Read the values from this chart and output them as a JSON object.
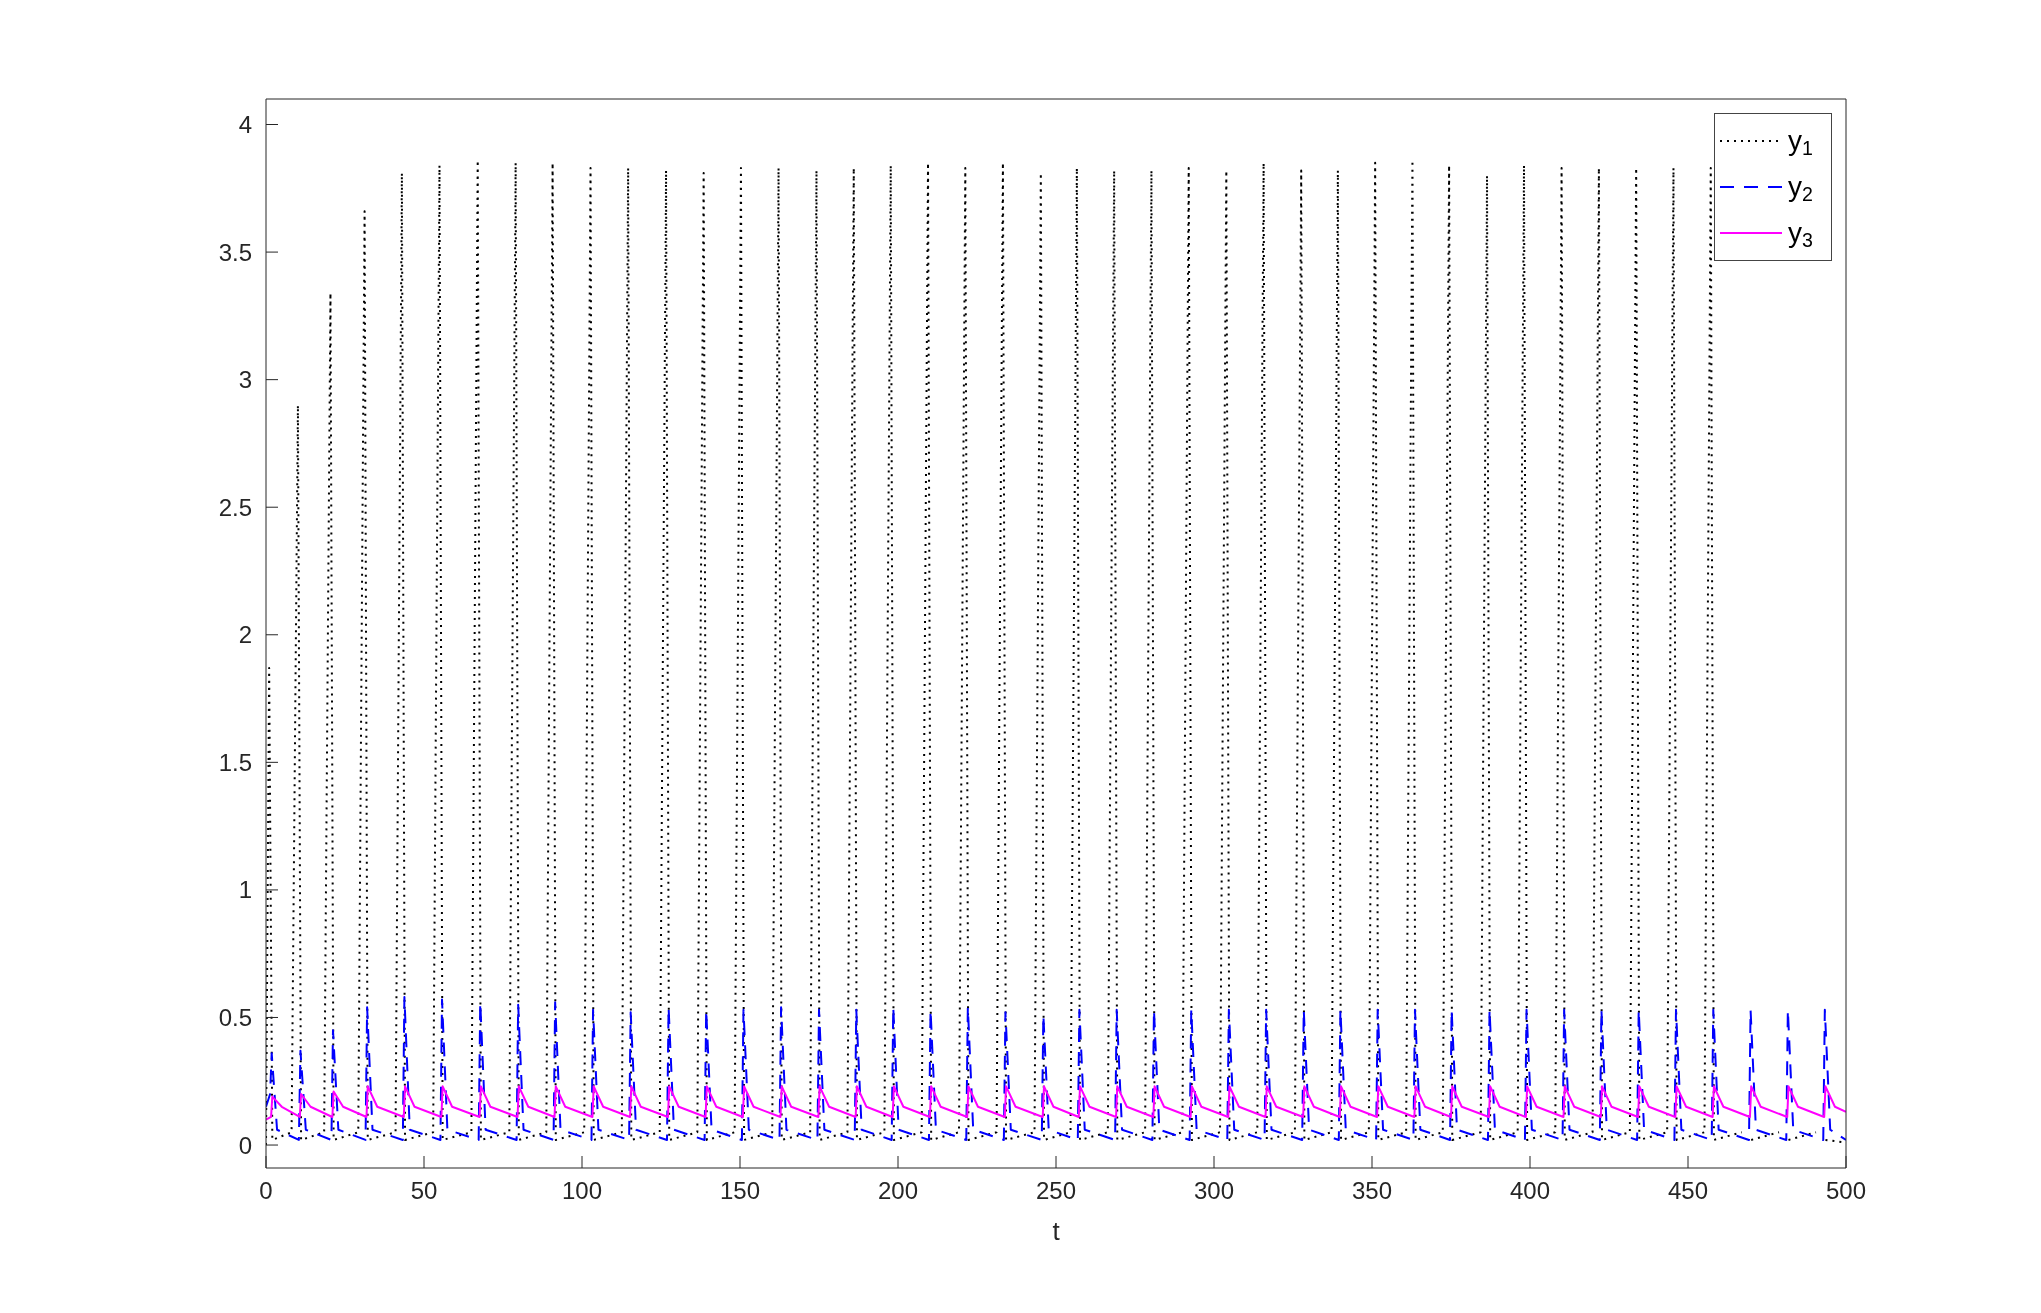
{
  "chart_data": {
    "type": "line",
    "xlabel": "t",
    "xlim": [
      0,
      500
    ],
    "xticks": [
      0,
      50,
      100,
      150,
      200,
      250,
      300,
      350,
      400,
      450,
      500
    ],
    "ylim": [
      -0.09,
      4.1
    ],
    "yticks": [
      0,
      0.5,
      1,
      1.5,
      2,
      2.5,
      3,
      3.5,
      4
    ],
    "legend": "top right",
    "series": [
      {
        "name": "y$_{1}$",
        "color": "#000000",
        "line_style": "dotted",
        "x": [
          0,
          1,
          2,
          8.1,
          10.1,
          11.1,
          18.4,
          20.4,
          21.4,
          29.2,
          31.2,
          32.2,
          41,
          43,
          44,
          52.9,
          54.9,
          55.9,
          65,
          67,
          68,
          77,
          79,
          80,
          88.7,
          90.7,
          91.7,
          100.7,
          102.7,
          103.7,
          112.6,
          114.6,
          115.6,
          124.6,
          126.6,
          127.6,
          136.5,
          138.5,
          139.5,
          148.3,
          150.3,
          151.3,
          160.2,
          162.2,
          163.2,
          172.2,
          174.2,
          175.2,
          184,
          186,
          187,
          195.7,
          197.7,
          198.7,
          207.5,
          209.5,
          210.5,
          219.3,
          221.3,
          222.3,
          231.2,
          233.2,
          234.2,
          243.2,
          245.2,
          246.2,
          254.6,
          256.6,
          257.6,
          266.4,
          268.4,
          269.4,
          278.2,
          280.2,
          281.2,
          290,
          292,
          293,
          301.9,
          303.9,
          304.9,
          313.7,
          315.7,
          316.7,
          325.6,
          327.6,
          328.6,
          337.2,
          339.2,
          340.2,
          349,
          351,
          352,
          360.8,
          362.8,
          363.8,
          372.4,
          374.4,
          375.4,
          384.4,
          386.4,
          387.4,
          396.1,
          398.1,
          399.1,
          408,
          410,
          411,
          419.8,
          421.8,
          422.8,
          431.6,
          433.6,
          434.6,
          443.4,
          445.4,
          446.4,
          455.2,
          457.2,
          458.2,
          467,
          469,
          470,
          478.8,
          480.8,
          481.8,
          490.5,
          492.5,
          493.5,
          500
        ],
        "values": [
          0,
          1.87,
          0.02,
          0.05,
          2.9,
          0.02,
          0.05,
          3.34,
          0.02,
          0.05,
          3.66,
          0.02,
          0.05,
          3.81,
          0.02,
          0.05,
          3.84,
          0.02,
          0.05,
          3.86,
          0.02,
          0.05,
          3.85,
          0.02,
          0.05,
          3.85,
          0.02,
          0.05,
          3.83,
          0.02,
          0.05,
          3.83,
          0.02,
          0.05,
          3.82,
          0.02,
          0.05,
          3.81,
          0.02,
          0.05,
          3.83,
          0.02,
          0.05,
          3.83,
          0.02,
          0.05,
          3.82,
          0.02,
          0.05,
          3.83,
          0.02,
          0.05,
          3.84,
          0.02,
          0.05,
          3.85,
          0.02,
          0.05,
          3.83,
          0.02,
          0.05,
          3.85,
          0.02,
          0.05,
          3.81,
          0.02,
          0.05,
          3.83,
          0.02,
          0.05,
          3.82,
          0.02,
          0.05,
          3.82,
          0.02,
          0.05,
          3.83,
          0.02,
          0.05,
          3.82,
          0.02,
          0.05,
          3.85,
          0.02,
          0.05,
          3.82,
          0.02,
          0.05,
          3.82,
          0.02,
          0.05,
          3.85,
          0.02,
          0.05,
          3.86,
          0.02,
          0.05,
          3.84,
          0.02,
          0.05,
          3.8,
          0.02,
          0.05,
          3.84,
          0.02,
          0.05,
          3.83,
          0.02,
          0.05,
          3.83,
          0.02,
          0.05,
          3.83,
          0.02,
          0.05,
          3.83,
          0.02,
          0.05,
          3.83,
          0.02,
          0.05,
          null,
          0.02,
          0.05,
          null,
          0.02,
          0.05,
          null,
          0.02,
          0.01
        ]
      },
      {
        "name": "y$_{2}$",
        "color": "#0000ff",
        "line_style": "dashed",
        "x": [
          0,
          1.3,
          1.8,
          3.5,
          10.4,
          10.9,
          12.6,
          20.7,
          21.2,
          22.9,
          31.5,
          32,
          33.7,
          43.3,
          43.8,
          45.5,
          55.2,
          55.7,
          57.4,
          67.3,
          67.8,
          69.5,
          79.3,
          79.8,
          81.5,
          91,
          91.5,
          93.2,
          103,
          103.5,
          105.2,
          114.9,
          115.4,
          117.1,
          126.9,
          127.4,
          129.1,
          138.8,
          139.3,
          141,
          150.6,
          151.1,
          152.8,
          162.5,
          163,
          164.7,
          174.5,
          175,
          176.7,
          186.3,
          186.8,
          188.5,
          198,
          198.5,
          200.2,
          209.8,
          210.3,
          212,
          221.6,
          222.1,
          223.8,
          233.5,
          234,
          235.7,
          245.5,
          246,
          247.7,
          256.9,
          257.4,
          259.1,
          268.7,
          269.2,
          270.9,
          280.5,
          281,
          282.7,
          292.3,
          292.8,
          294.5,
          304.2,
          304.7,
          306.4,
          316,
          316.5,
          318.2,
          327.9,
          328.4,
          330.1,
          339.5,
          340,
          341.7,
          351.3,
          351.8,
          353.5,
          363.1,
          363.6,
          365.3,
          374.7,
          375.2,
          376.9,
          386.7,
          387.2,
          388.9,
          398.4,
          398.9,
          400.6,
          410.3,
          410.8,
          412.5,
          422.1,
          422.6,
          424.3,
          433.9,
          434.4,
          436.1,
          445.7,
          446.2,
          447.9,
          457.5,
          458,
          459.7,
          469.3,
          469.8,
          471.5,
          481.1,
          481.6,
          483.3,
          492.8,
          493.3,
          495,
          500
        ],
        "values": [
          0.15,
          0.2,
          0.36,
          0.06,
          0.02,
          0.37,
          0.06,
          0.02,
          0.45,
          0.06,
          0.02,
          0.54,
          0.06,
          0.02,
          0.58,
          0.06,
          0.02,
          0.57,
          0.06,
          0.02,
          0.56,
          0.06,
          0.02,
          0.55,
          0.06,
          0.02,
          0.56,
          0.06,
          0.02,
          0.53,
          0.06,
          0.02,
          0.52,
          0.06,
          0.02,
          0.54,
          0.06,
          0.02,
          0.53,
          0.06,
          0.02,
          0.53,
          0.06,
          0.02,
          0.54,
          0.06,
          0.02,
          0.53,
          0.06,
          0.02,
          0.53,
          0.06,
          0.02,
          0.54,
          0.06,
          0.02,
          0.53,
          0.06,
          0.02,
          0.54,
          0.06,
          0.02,
          0.52,
          0.06,
          0.02,
          0.51,
          0.06,
          0.02,
          0.53,
          0.06,
          0.02,
          0.53,
          0.06,
          0.02,
          0.53,
          0.06,
          0.02,
          0.53,
          0.06,
          0.02,
          0.53,
          0.06,
          0.02,
          0.53,
          0.06,
          0.02,
          0.53,
          0.06,
          0.02,
          0.53,
          0.06,
          0.02,
          0.53,
          0.06,
          0.02,
          0.53,
          0.06,
          0.02,
          0.53,
          0.06,
          0.02,
          0.53,
          0.06,
          0.02,
          0.53,
          0.06,
          0.02,
          0.53,
          0.06,
          0.02,
          0.53,
          0.06,
          0.02,
          0.53,
          0.06,
          0.02,
          0.53,
          0.06,
          0.02,
          0.53,
          0.06,
          0.02,
          0.53,
          0.06,
          0.02,
          0.53,
          0.06,
          0.02,
          0.53,
          0.06,
          0.02
        ]
      },
      {
        "name": "y$_{3}$",
        "color": "#ff00ff",
        "line_style": "solid",
        "x": [
          0,
          1.6,
          2,
          5,
          10.7,
          11.1,
          14.1,
          21,
          21.4,
          24.4,
          31.8,
          32.2,
          35.2,
          43.6,
          44,
          47,
          55.5,
          55.9,
          58.9,
          67.6,
          68,
          71,
          79.6,
          80,
          83,
          91.3,
          91.7,
          94.7,
          103.3,
          103.7,
          106.7,
          115.2,
          115.6,
          118.6,
          127.2,
          127.6,
          130.6,
          139.1,
          139.5,
          142.5,
          150.9,
          151.3,
          154.3,
          162.8,
          163.2,
          166.2,
          174.8,
          175.2,
          178.2,
          186.6,
          187,
          190,
          198.3,
          198.7,
          201.7,
          210.1,
          210.5,
          213.5,
          221.9,
          222.3,
          225.3,
          233.8,
          234.2,
          237.2,
          245.8,
          246.2,
          249.2,
          257.2,
          257.6,
          260.6,
          269,
          269.4,
          272.4,
          280.8,
          281.2,
          284.2,
          292.6,
          293,
          296,
          304.5,
          304.9,
          307.9,
          316.3,
          316.7,
          319.7,
          328.2,
          328.6,
          331.6,
          339.8,
          340.2,
          343.2,
          351.6,
          352,
          355,
          363.4,
          363.8,
          366.8,
          375,
          375.4,
          378.4,
          387,
          387.4,
          390.4,
          398.7,
          399.1,
          402.1,
          410.6,
          411,
          414,
          422.4,
          422.8,
          425.8,
          434.2,
          434.6,
          437.6,
          446,
          446.4,
          449.4,
          457.8,
          458.2,
          461.2,
          469.6,
          470,
          473,
          481.4,
          481.8,
          484.8,
          493.1,
          493.5,
          496.5,
          500
        ],
        "values": [
          0.1,
          0.11,
          0.19,
          0.15,
          0.11,
          0.2,
          0.15,
          0.11,
          0.21,
          0.15,
          0.11,
          0.23,
          0.15,
          0.11,
          0.23,
          0.15,
          0.11,
          0.23,
          0.15,
          0.11,
          0.23,
          0.15,
          0.11,
          0.23,
          0.15,
          0.11,
          0.23,
          0.15,
          0.11,
          0.23,
          0.15,
          0.11,
          0.23,
          0.15,
          0.11,
          0.23,
          0.15,
          0.11,
          0.23,
          0.15,
          0.11,
          0.23,
          0.15,
          0.11,
          0.23,
          0.15,
          0.11,
          0.23,
          0.15,
          0.11,
          0.23,
          0.15,
          0.11,
          0.23,
          0.15,
          0.11,
          0.23,
          0.15,
          0.11,
          0.23,
          0.15,
          0.11,
          0.23,
          0.15,
          0.11,
          0.23,
          0.15,
          0.11,
          0.23,
          0.15,
          0.11,
          0.23,
          0.15,
          0.11,
          0.23,
          0.15,
          0.11,
          0.23,
          0.15,
          0.11,
          0.23,
          0.15,
          0.11,
          0.23,
          0.15,
          0.11,
          0.23,
          0.15,
          0.11,
          0.23,
          0.15,
          0.11,
          0.23,
          0.15,
          0.11,
          0.23,
          0.15,
          0.11,
          0.23,
          0.15,
          0.11,
          0.23,
          0.15,
          0.11,
          0.23,
          0.15,
          0.11,
          0.23,
          0.15,
          0.11,
          0.23,
          0.15,
          0.11,
          0.23,
          0.15,
          0.11,
          0.23,
          0.15,
          0.11,
          0.23,
          0.15,
          0.11,
          0.23,
          0.15,
          0.11,
          0.23,
          0.15,
          0.11,
          0.23,
          0.15,
          0.13
        ]
      }
    ]
  }
}
